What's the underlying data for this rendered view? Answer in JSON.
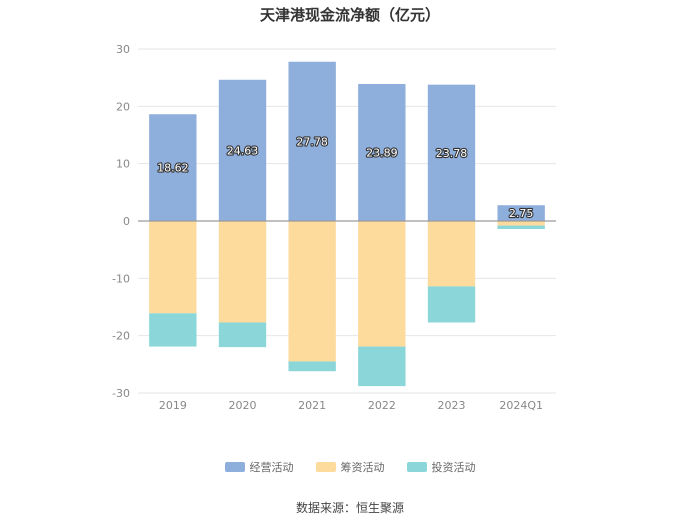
{
  "chart_data": {
    "type": "bar",
    "stacked": true,
    "title": "天津港现金流净额（亿元）",
    "categories": [
      "2019",
      "2020",
      "2021",
      "2022",
      "2023",
      "2024Q1"
    ],
    "series": [
      {
        "name": "经营活动",
        "color": "#8eaedc",
        "values": [
          18.62,
          24.63,
          27.78,
          23.89,
          23.78,
          2.75
        ],
        "show_labels": true
      },
      {
        "name": "筹资活动",
        "color": "#fddb9d",
        "values": [
          -16.1,
          -17.7,
          -24.5,
          -21.9,
          -11.4,
          -0.8
        ],
        "show_labels": false
      },
      {
        "name": "投资活动",
        "color": "#8ad6d9",
        "values": [
          -5.8,
          -4.3,
          -1.7,
          -6.9,
          -6.3,
          -0.6
        ],
        "show_labels": false
      }
    ],
    "ylim": [
      -30,
      30
    ],
    "yticks": [
      30,
      20,
      10,
      0,
      -10,
      -20,
      -30
    ],
    "grid": true,
    "legend_position": "bottom"
  },
  "source": "数据来源：恒生聚源"
}
